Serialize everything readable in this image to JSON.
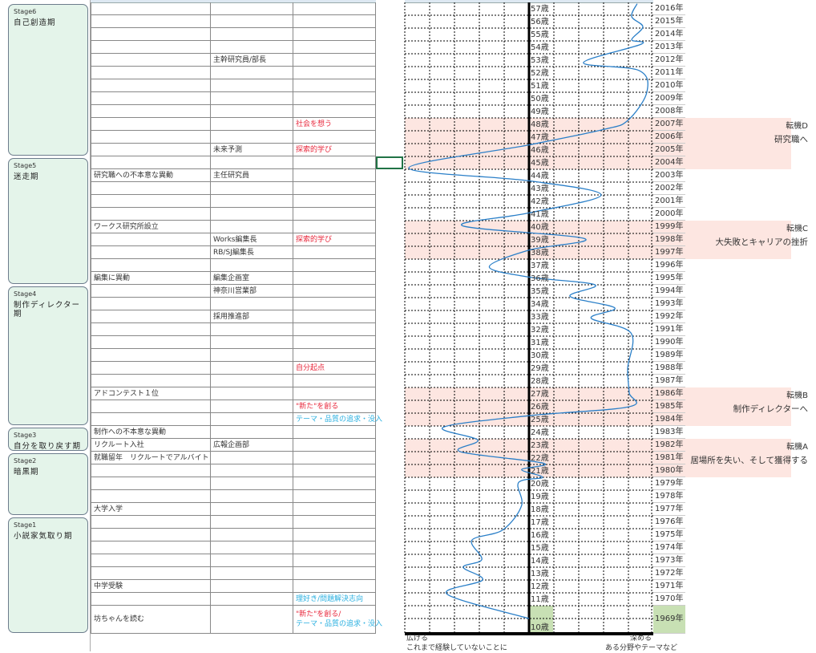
{
  "stages": [
    {
      "num": "Stage6",
      "name": "自己創造期",
      "top_age": 57,
      "bottom_age": 46
    },
    {
      "num": "Stage5",
      "name": "迷走期",
      "top_age": 45,
      "bottom_age": 36
    },
    {
      "num": "Stage4",
      "name": "制作ディレクター期",
      "top_age": 35,
      "bottom_age": 25
    },
    {
      "num": "Stage3",
      "name": "自分を取り戻す期",
      "top_age": 24,
      "bottom_age": 23
    },
    {
      "num": "Stage2",
      "name": "暗黒期",
      "top_age": 22,
      "bottom_age": 18
    },
    {
      "num": "Stage1",
      "name": "小説家気取り期",
      "top_age": 17,
      "bottom_age": 10
    }
  ],
  "rows": [
    {
      "age": "57歳",
      "year": "2016年",
      "c1": "",
      "c2": "",
      "c3": ""
    },
    {
      "age": "56歳",
      "year": "2015年",
      "c1": "",
      "c2": "",
      "c3": ""
    },
    {
      "age": "55歳",
      "year": "2014年",
      "c1": "",
      "c2": "",
      "c3": ""
    },
    {
      "age": "54歳",
      "year": "2013年",
      "c1": "",
      "c2": "",
      "c3": ""
    },
    {
      "age": "53歳",
      "year": "2012年",
      "c1": "",
      "c2": "主幹研究員/部長",
      "c3": ""
    },
    {
      "age": "52歳",
      "year": "2011年",
      "c1": "",
      "c2": "",
      "c3": ""
    },
    {
      "age": "51歳",
      "year": "2010年",
      "c1": "",
      "c2": "",
      "c3": ""
    },
    {
      "age": "50歳",
      "year": "2009年",
      "c1": "",
      "c2": "",
      "c3": ""
    },
    {
      "age": "49歳",
      "year": "2008年",
      "c1": "",
      "c2": "",
      "c3": ""
    },
    {
      "age": "48歳",
      "year": "2007年",
      "c1": "",
      "c2": "",
      "c3": "社会を想う",
      "c3_style": "red"
    },
    {
      "age": "47歳",
      "year": "2006年",
      "c1": "",
      "c2": "",
      "c3": ""
    },
    {
      "age": "46歳",
      "year": "2005年",
      "c1": "",
      "c2": "未来予測",
      "c3": "探索的学び",
      "c3_style": "red"
    },
    {
      "age": "45歳",
      "year": "2004年",
      "c1": "",
      "c2": "",
      "c3": ""
    },
    {
      "age": "44歳",
      "year": "2003年",
      "c1": "研究職への不本意な異動",
      "c2": "主任研究員",
      "c3": ""
    },
    {
      "age": "43歳",
      "year": "2002年",
      "c1": "",
      "c2": "",
      "c3": ""
    },
    {
      "age": "42歳",
      "year": "2001年",
      "c1": "",
      "c2": "",
      "c3": ""
    },
    {
      "age": "41歳",
      "year": "2000年",
      "c1": "",
      "c2": "",
      "c3": ""
    },
    {
      "age": "40歳",
      "year": "1999年",
      "c1": "ワークス研究所設立",
      "c2": "",
      "c3": ""
    },
    {
      "age": "39歳",
      "year": "1998年",
      "c1": "",
      "c2": "Works編集長",
      "c3": "探索的学び",
      "c3_style": "red"
    },
    {
      "age": "38歳",
      "year": "1997年",
      "c1": "",
      "c2": "RB/SJ編集長",
      "c3": ""
    },
    {
      "age": "37歳",
      "year": "1996年",
      "c1": "",
      "c2": "",
      "c3": ""
    },
    {
      "age": "36歳",
      "year": "1995年",
      "c1": "編集に異動",
      "c2": "編集企画室",
      "c3": ""
    },
    {
      "age": "35歳",
      "year": "1994年",
      "c1": "",
      "c2": "神奈川営業部",
      "c3": ""
    },
    {
      "age": "34歳",
      "year": "1993年",
      "c1": "",
      "c2": "",
      "c3": ""
    },
    {
      "age": "33歳",
      "year": "1992年",
      "c1": "",
      "c2": "採用推進部",
      "c3": ""
    },
    {
      "age": "32歳",
      "year": "1991年",
      "c1": "",
      "c2": "",
      "c3": ""
    },
    {
      "age": "31歳",
      "year": "1990年",
      "c1": "",
      "c2": "",
      "c3": ""
    },
    {
      "age": "30歳",
      "year": "1989年",
      "c1": "",
      "c2": "",
      "c3": ""
    },
    {
      "age": "29歳",
      "year": "1988年",
      "c1": "",
      "c2": "",
      "c3": "自分起点",
      "c3_style": "red"
    },
    {
      "age": "28歳",
      "year": "1987年",
      "c1": "",
      "c2": "",
      "c3": ""
    },
    {
      "age": "27歳",
      "year": "1986年",
      "c1": "アドコンテスト１位",
      "c2": "",
      "c3": ""
    },
    {
      "age": "26歳",
      "year": "1985年",
      "c1": "",
      "c2": "",
      "c3": "\"新た\"を創る",
      "c3_style": "red"
    },
    {
      "age": "25歳",
      "year": "1984年",
      "c1": "",
      "c2": "",
      "c3": "テーマ・品質の追求・没入",
      "c3_style": "cyan"
    },
    {
      "age": "24歳",
      "year": "1983年",
      "c1": "制作への不本意な異動",
      "c2": "",
      "c3": ""
    },
    {
      "age": "23歳",
      "year": "1982年",
      "c1": "リクルート入社",
      "c2": "広報企画部",
      "c3": ""
    },
    {
      "age": "22歳",
      "year": "1981年",
      "c1": "就職留年　リクルートでアルバイト",
      "c2": "",
      "c3": ""
    },
    {
      "age": "21歳",
      "year": "1980年",
      "c1": "",
      "c2": "",
      "c3": ""
    },
    {
      "age": "20歳",
      "year": "1979年",
      "c1": "",
      "c2": "",
      "c3": ""
    },
    {
      "age": "19歳",
      "year": "1978年",
      "c1": "",
      "c2": "",
      "c3": ""
    },
    {
      "age": "18歳",
      "year": "1977年",
      "c1": "大学入学",
      "c2": "",
      "c3": ""
    },
    {
      "age": "17歳",
      "year": "1976年",
      "c1": "",
      "c2": "",
      "c3": ""
    },
    {
      "age": "16歳",
      "year": "1975年",
      "c1": "",
      "c2": "",
      "c3": ""
    },
    {
      "age": "15歳",
      "year": "1974年",
      "c1": "",
      "c2": "",
      "c3": ""
    },
    {
      "age": "14歳",
      "year": "1973年",
      "c1": "",
      "c2": "",
      "c3": ""
    },
    {
      "age": "13歳",
      "year": "1972年",
      "c1": "",
      "c2": "",
      "c3": ""
    },
    {
      "age": "12歳",
      "year": "1971年",
      "c1": "中学受験",
      "c2": "",
      "c3": ""
    },
    {
      "age": "11歳",
      "year": "1970年",
      "c1": "",
      "c2": "",
      "c3": "理好き/問題解決志向",
      "c3_style": "cyan"
    },
    {
      "age": "10歳",
      "year": "1969年",
      "c1": "坊ちゃんを読む",
      "c2": "",
      "c3": "\"新た\"を創る/",
      "c3_style": "red",
      "c3b": "テーマ・品質の追求・没入",
      "c3b_style": "cyan"
    }
  ],
  "turning_points": [
    {
      "title": "転機D",
      "text": "研究職へ",
      "from_age": 48,
      "to_age": 45
    },
    {
      "title": "転機C",
      "text": "大失敗とキャリアの挫折",
      "from_age": 40,
      "to_age": 38
    },
    {
      "title": "転機B",
      "text": "制作ディレクターへ",
      "from_age": 27,
      "to_age": 25
    },
    {
      "title": "転機A",
      "text": "居場所を失い、そして獲得する",
      "from_age": 23,
      "to_age": 21
    }
  ],
  "axis": {
    "left_label": "広げる",
    "left_sub": "これまで経験していないことに",
    "right_label": "深める",
    "right_sub": "ある分野やテーマなど",
    "xlim": [
      -5,
      5
    ]
  },
  "colors": {
    "curve": "#2a7fc8",
    "band": "#fde6e1",
    "stage_bg": "#e4f4ea",
    "highlight": "#c8e0b4",
    "red": "#e8283c",
    "cyan": "#2bb0e0"
  },
  "chart_data": {
    "type": "line",
    "xlabel_left": "広げる",
    "xlabel_right": "深める",
    "xlim": [
      -5,
      5
    ],
    "ylim": [
      10,
      57
    ],
    "points": [
      [
        57.4,
        4.35
      ],
      [
        56.4,
        4.13
      ],
      [
        55.6,
        4.58
      ],
      [
        54.6,
        4.13
      ],
      [
        54.25,
        4.52
      ],
      [
        52.8,
        2.19
      ],
      [
        52.2,
        4.42
      ],
      [
        50.5,
        4.74
      ],
      [
        48.3,
        3.97
      ],
      [
        47.6,
        3.0
      ],
      [
        46.4,
        0
      ],
      [
        44.6,
        -4.84
      ],
      [
        43.6,
        0
      ],
      [
        42.5,
        2.9
      ],
      [
        41.1,
        0
      ],
      [
        40.1,
        -2.68
      ],
      [
        39.1,
        2.23
      ],
      [
        38.2,
        0
      ],
      [
        36.9,
        -1.6
      ],
      [
        36.1,
        0
      ],
      [
        35.5,
        2.65
      ],
      [
        34.6,
        1.65
      ],
      [
        33.7,
        3.45
      ],
      [
        32.9,
        2.5
      ],
      [
        31.75,
        4.1
      ],
      [
        29.0,
        3.97
      ],
      [
        27.1,
        4.03
      ],
      [
        26.0,
        4.03
      ],
      [
        25.3,
        0
      ],
      [
        24.4,
        -3.45
      ],
      [
        23.4,
        -2.06
      ],
      [
        22.5,
        -2.77
      ],
      [
        21.6,
        0.58
      ],
      [
        21.1,
        -0.3
      ],
      [
        20.5,
        0.55
      ],
      [
        20.1,
        -0.42
      ],
      [
        18.3,
        -0.3
      ],
      [
        16.4,
        -1.06
      ],
      [
        15.6,
        -2.3
      ],
      [
        14.1,
        -1.9
      ],
      [
        13.5,
        -2.65
      ],
      [
        12.5,
        -1.87
      ],
      [
        11.4,
        -3.3
      ],
      [
        10,
        0
      ]
    ]
  }
}
